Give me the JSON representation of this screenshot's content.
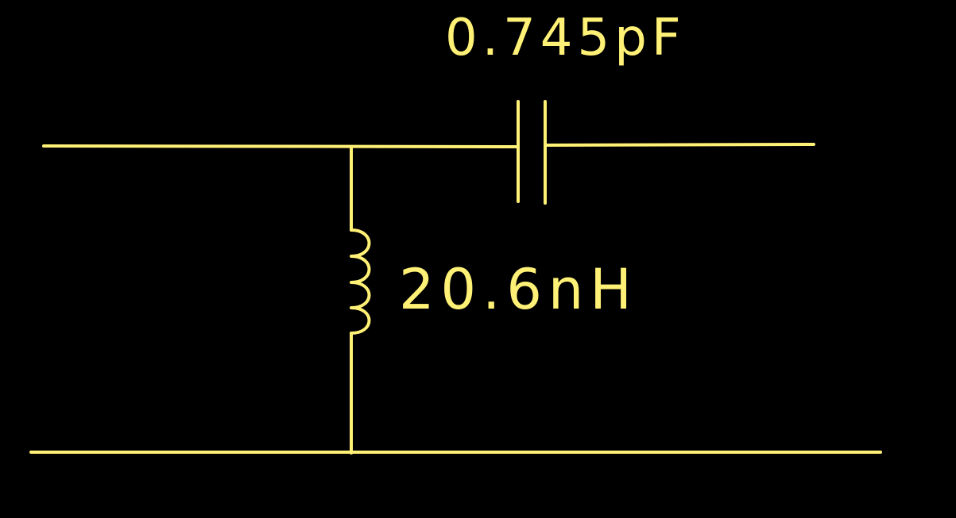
{
  "colors": {
    "background": "#000000",
    "ink": "#FFF176"
  },
  "components": {
    "capacitor": {
      "value_label": "0.745pF"
    },
    "inductor": {
      "value_label": "20.6nH"
    }
  }
}
